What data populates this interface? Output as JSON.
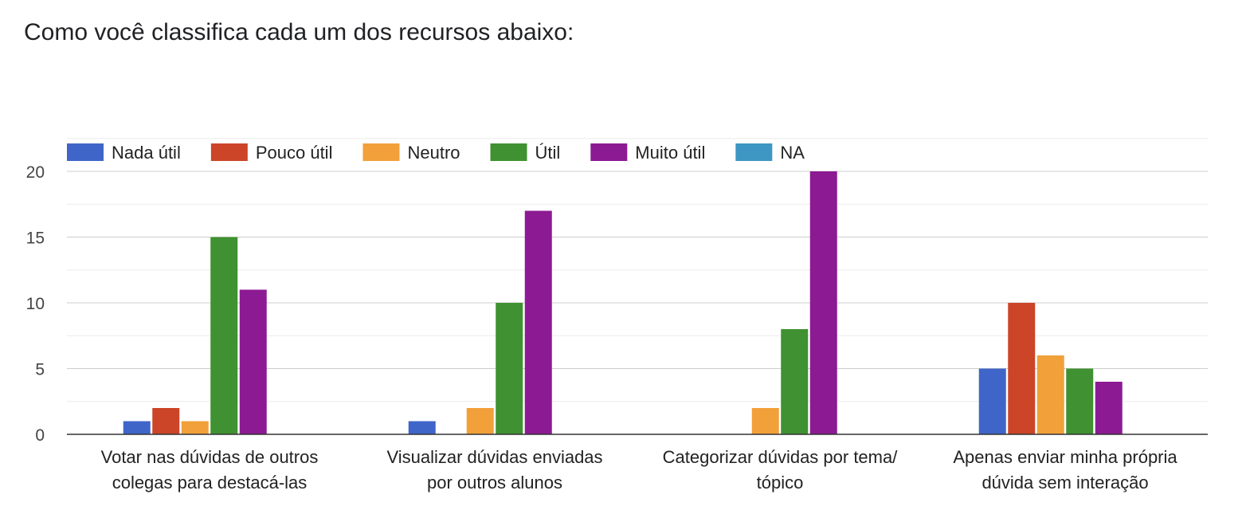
{
  "chart_data": {
    "type": "bar",
    "title": "Como você classifica cada um dos recursos abaixo:",
    "xlabel": "",
    "ylabel": "",
    "ylim": [
      0,
      20
    ],
    "yticks": [
      0,
      5,
      10,
      15,
      20
    ],
    "grid": true,
    "legend_position": "top-left",
    "categories": [
      [
        "Votar nas dúvidas de outros",
        "colegas para destacá-las"
      ],
      [
        "Visualizar dúvidas enviadas",
        "por outros alunos"
      ],
      [
        "Categorizar dúvidas por tema/",
        "tópico"
      ],
      [
        "Apenas enviar minha própria",
        "dúvida sem interação"
      ]
    ],
    "series": [
      {
        "name": "Nada útil",
        "color": "#3f65c8",
        "values": [
          1,
          1,
          0,
          5
        ]
      },
      {
        "name": "Pouco útil",
        "color": "#cc4528",
        "values": [
          2,
          0,
          0,
          10
        ]
      },
      {
        "name": "Neutro",
        "color": "#f1a03a",
        "values": [
          1,
          2,
          2,
          6
        ]
      },
      {
        "name": "Útil",
        "color": "#3f9131",
        "values": [
          15,
          10,
          8,
          5
        ]
      },
      {
        "name": "Muito útil",
        "color": "#8c1a93",
        "values": [
          11,
          17,
          20,
          4
        ]
      },
      {
        "name": "NA",
        "color": "#3d97c2",
        "values": [
          0,
          0,
          0,
          0
        ]
      }
    ]
  }
}
